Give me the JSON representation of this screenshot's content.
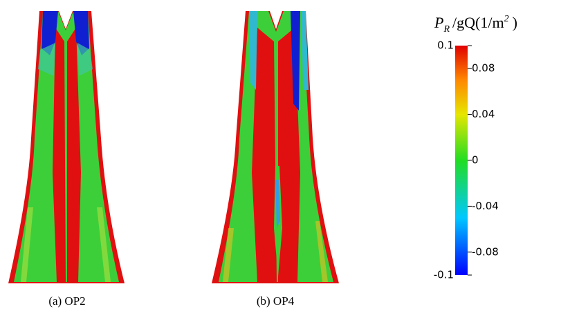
{
  "panels": [
    {
      "caption": "(a) OP2"
    },
    {
      "caption": "(b) OP4"
    }
  ],
  "colorbar": {
    "title": {
      "main": "P",
      "sub": "R",
      "rest": "/gQ(1/m",
      "sup": "2",
      "close": ")"
    },
    "lim": [
      -0.1,
      0.1
    ],
    "ticks": [
      -0.08,
      -0.04,
      0,
      0.04,
      0.08
    ]
  }
}
